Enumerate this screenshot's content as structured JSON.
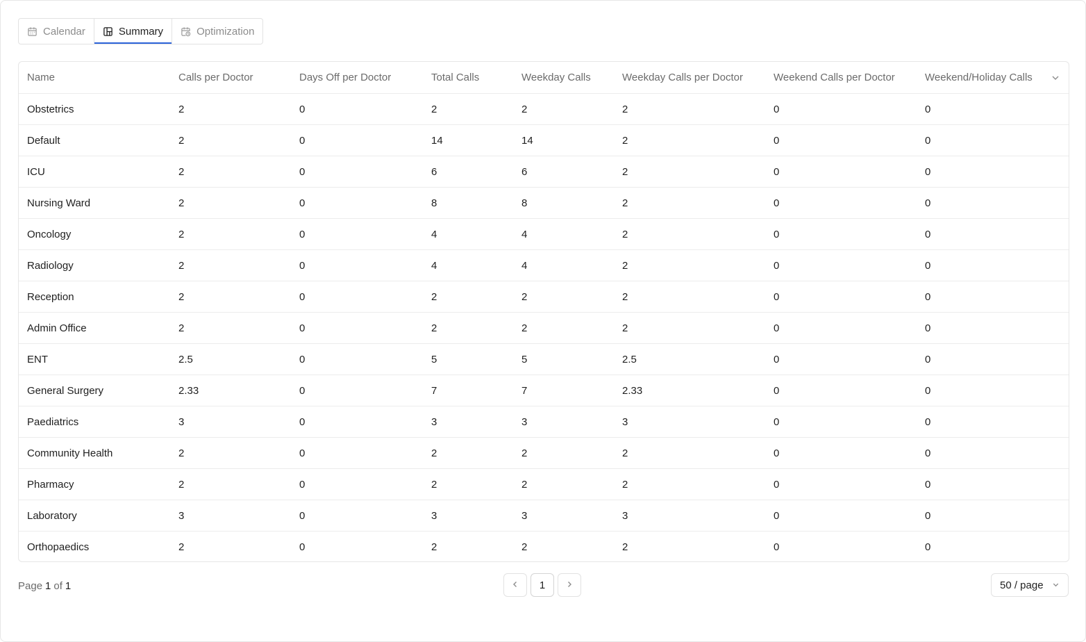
{
  "tabs": [
    {
      "label": "Calendar",
      "icon": "calendar-icon",
      "active": false
    },
    {
      "label": "Summary",
      "icon": "layout-icon",
      "active": true
    },
    {
      "label": "Optimization",
      "icon": "calendar-clock-icon",
      "active": false
    }
  ],
  "table": {
    "columns": [
      "Name",
      "Calls per Doctor",
      "Days Off per Doctor",
      "Total Calls",
      "Weekday Calls",
      "Weekday Calls per Doctor",
      "Weekend Calls per Doctor",
      "Weekend/Holiday Calls"
    ],
    "rows": [
      [
        "Obstetrics",
        "2",
        "0",
        "2",
        "2",
        "2",
        "0",
        "0"
      ],
      [
        "Default",
        "2",
        "0",
        "14",
        "14",
        "2",
        "0",
        "0"
      ],
      [
        "ICU",
        "2",
        "0",
        "6",
        "6",
        "2",
        "0",
        "0"
      ],
      [
        "Nursing Ward",
        "2",
        "0",
        "8",
        "8",
        "2",
        "0",
        "0"
      ],
      [
        "Oncology",
        "2",
        "0",
        "4",
        "4",
        "2",
        "0",
        "0"
      ],
      [
        "Radiology",
        "2",
        "0",
        "4",
        "4",
        "2",
        "0",
        "0"
      ],
      [
        "Reception",
        "2",
        "0",
        "2",
        "2",
        "2",
        "0",
        "0"
      ],
      [
        "Admin Office",
        "2",
        "0",
        "2",
        "2",
        "2",
        "0",
        "0"
      ],
      [
        "ENT",
        "2.5",
        "0",
        "5",
        "5",
        "2.5",
        "0",
        "0"
      ],
      [
        "General Surgery",
        "2.33",
        "0",
        "7",
        "7",
        "2.33",
        "0",
        "0"
      ],
      [
        "Paediatrics",
        "3",
        "0",
        "3",
        "3",
        "3",
        "0",
        "0"
      ],
      [
        "Community Health",
        "2",
        "0",
        "2",
        "2",
        "2",
        "0",
        "0"
      ],
      [
        "Pharmacy",
        "2",
        "0",
        "2",
        "2",
        "2",
        "0",
        "0"
      ],
      [
        "Laboratory",
        "3",
        "0",
        "3",
        "3",
        "3",
        "0",
        "0"
      ],
      [
        "Orthopaedics",
        "2",
        "0",
        "2",
        "2",
        "2",
        "0",
        "0"
      ]
    ]
  },
  "pagination": {
    "page_word": "Page",
    "current": "1",
    "of_word": "of",
    "total": "1",
    "page_button": "1",
    "page_size": "50 / page"
  },
  "colors": {
    "accent": "#2b63d9",
    "border": "#e6e6e6",
    "muted_text": "#8c8c8c"
  }
}
